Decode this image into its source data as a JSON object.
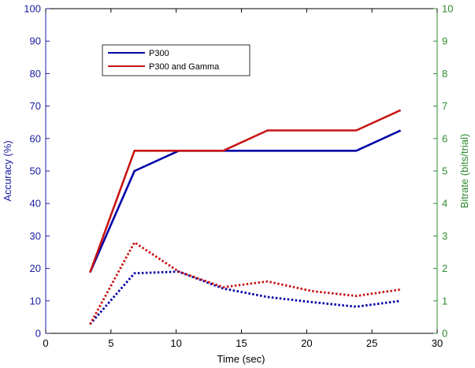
{
  "chart_data": {
    "type": "line",
    "xlabel": "Time (sec)",
    "ylabel_left": "Accuracy (%)",
    "ylabel_right": "Bitrate (bits/trial)",
    "xlim": [
      0,
      30
    ],
    "ylim_left": [
      0,
      100
    ],
    "ylim_right": [
      0,
      10
    ],
    "xticks": [
      0,
      5,
      10,
      15,
      20,
      25,
      30
    ],
    "yticks_left": [
      0,
      10,
      20,
      30,
      40,
      50,
      60,
      70,
      80,
      90,
      100
    ],
    "yticks_right": [
      0,
      1,
      2,
      3,
      4,
      5,
      6,
      7,
      8,
      9,
      10
    ],
    "grid": false,
    "legend_position": "top-left",
    "colors": {
      "left_axis": "#1a1aa0",
      "right_axis": "#2e8b2e",
      "p300": "#0000a8",
      "p300_gamma": "#c81414"
    },
    "series": [
      {
        "name": "P300",
        "axis": "left",
        "style": "solid",
        "color": "#0000a8",
        "x": [
          3.4,
          6.8,
          10.2,
          13.6,
          17.0,
          20.4,
          23.8,
          27.2
        ],
        "values": [
          18.75,
          50,
          56.25,
          56.25,
          56.25,
          56.25,
          56.25,
          62.5
        ]
      },
      {
        "name": "P300 and Gamma",
        "axis": "left",
        "style": "solid",
        "color": "#c81414",
        "x": [
          3.4,
          6.8,
          10.2,
          13.6,
          17.0,
          20.4,
          23.8,
          27.2
        ],
        "values": [
          18.75,
          56.25,
          56.25,
          56.25,
          62.5,
          62.5,
          62.5,
          68.75
        ]
      },
      {
        "axis": "right",
        "style": "dotted",
        "color": "#0000a8",
        "x": [
          3.4,
          6.8,
          10.2,
          13.6,
          17.0,
          20.4,
          23.8,
          27.2
        ],
        "values": [
          0.28,
          1.85,
          1.9,
          1.38,
          1.12,
          0.96,
          0.82,
          1.0
        ]
      },
      {
        "axis": "right",
        "style": "dotted",
        "color": "#c81414",
        "x": [
          3.4,
          6.8,
          10.2,
          13.6,
          17.0,
          20.4,
          23.8,
          27.2
        ],
        "values": [
          0.28,
          2.8,
          1.9,
          1.42,
          1.6,
          1.3,
          1.15,
          1.35
        ]
      }
    ]
  }
}
